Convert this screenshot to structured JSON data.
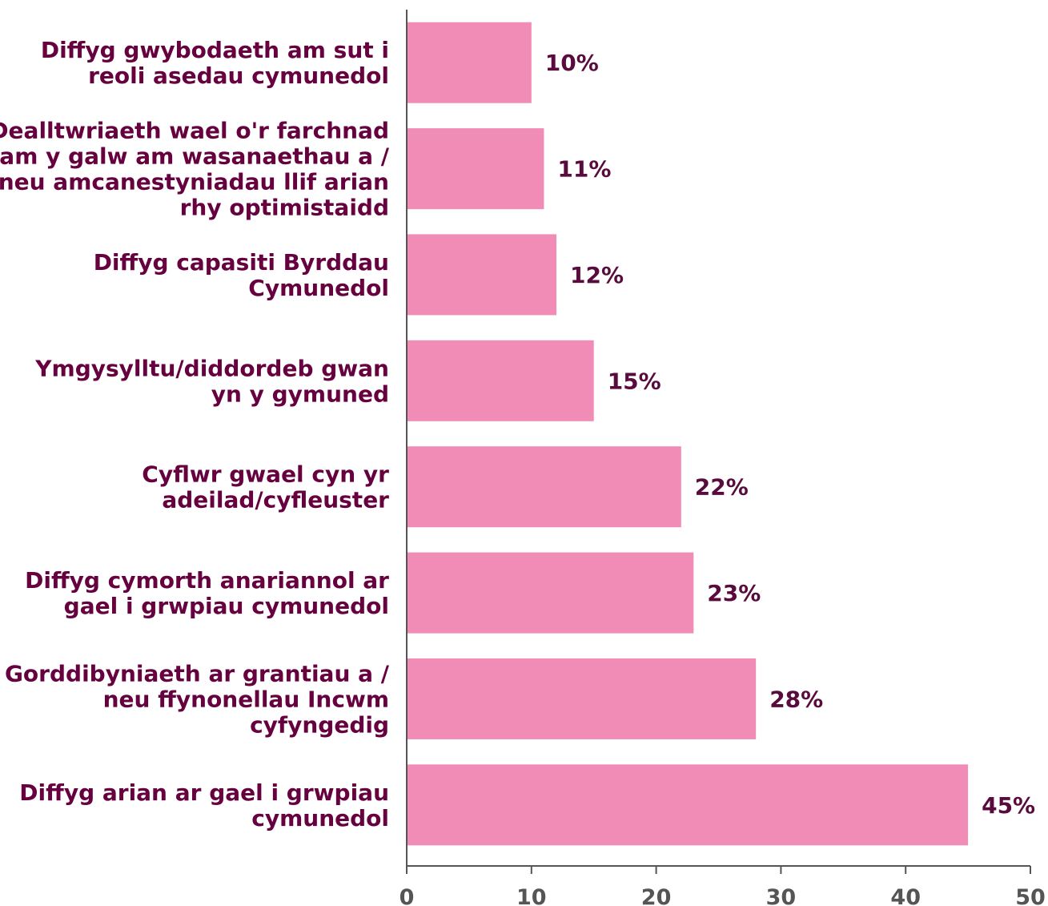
{
  "chart_data": {
    "type": "bar",
    "orientation": "horizontal",
    "categories": [
      [
        "Diffyg gwybodaeth am sut i",
        "reoli asedau cymunedol"
      ],
      [
        "Dealltwriaeth wael o'r farchnad",
        "am y galw am wasanaethau a /",
        "neu amcanestyniadau llif arian",
        "rhy optimistaidd"
      ],
      [
        "Diffyg capasiti Byrddau",
        "Cymunedol"
      ],
      [
        "Ymgysylltu/diddordeb gwan",
        "yn y gymuned"
      ],
      [
        "Cyflwr gwael cyn yr",
        "adeilad/cyfleuster"
      ],
      [
        "Diffyg cymorth anariannol ar",
        "gael i grwpiau cymunedol"
      ],
      [
        "Gorddibyniaeth ar grantiau a /",
        "neu ffynonellau Incwm",
        "cyfyngedig"
      ],
      [
        "Diffyg arian ar gael i grwpiau",
        "cymunedol"
      ]
    ],
    "values": [
      10,
      11,
      12,
      15,
      22,
      23,
      28,
      45
    ],
    "data_labels": [
      "10%",
      "11%",
      "12%",
      "15%",
      "22%",
      "23%",
      "28%",
      "45%"
    ],
    "xlim": [
      0,
      50
    ],
    "xticks": [
      0,
      10,
      20,
      30,
      40,
      50
    ],
    "xtick_labels": [
      "0",
      "10",
      "20",
      "30",
      "40",
      "50"
    ],
    "title": "",
    "xlabel": "",
    "ylabel": "",
    "grid": false,
    "colors": {
      "bar": "#f08cb6",
      "category_text": "#66003f",
      "value_text": "#5a0b3d",
      "tick_text": "#555555",
      "axis": "#555555"
    }
  }
}
